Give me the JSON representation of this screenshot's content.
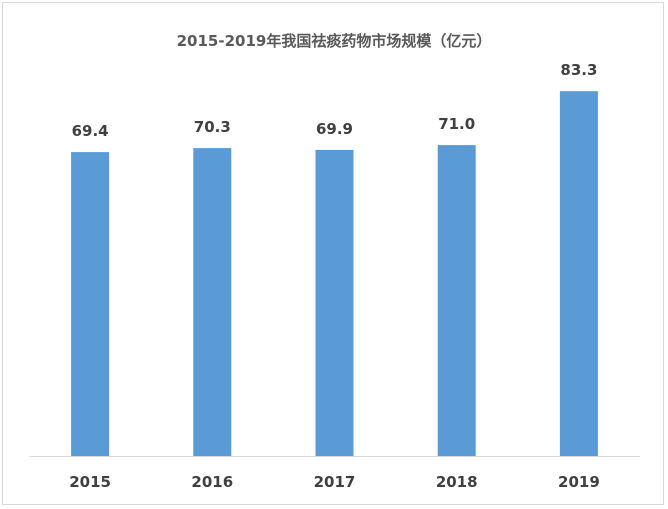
{
  "chart_data": {
    "type": "bar",
    "title": "2015-2019年我国祛痰药物市场规模（亿元）",
    "categories": [
      "2015",
      "2016",
      "2017",
      "2018",
      "2019"
    ],
    "values": [
      69.4,
      70.3,
      69.9,
      71.0,
      83.3
    ],
    "value_labels": [
      "69.4",
      "70.3",
      "69.9",
      "71.0",
      "83.3"
    ],
    "xlabel": "",
    "ylabel": "",
    "ylim": [
      0,
      87
    ],
    "grid": false,
    "legend": "none",
    "bar_color": "#5b9bd5",
    "axis_color": "#d9d9d9"
  }
}
